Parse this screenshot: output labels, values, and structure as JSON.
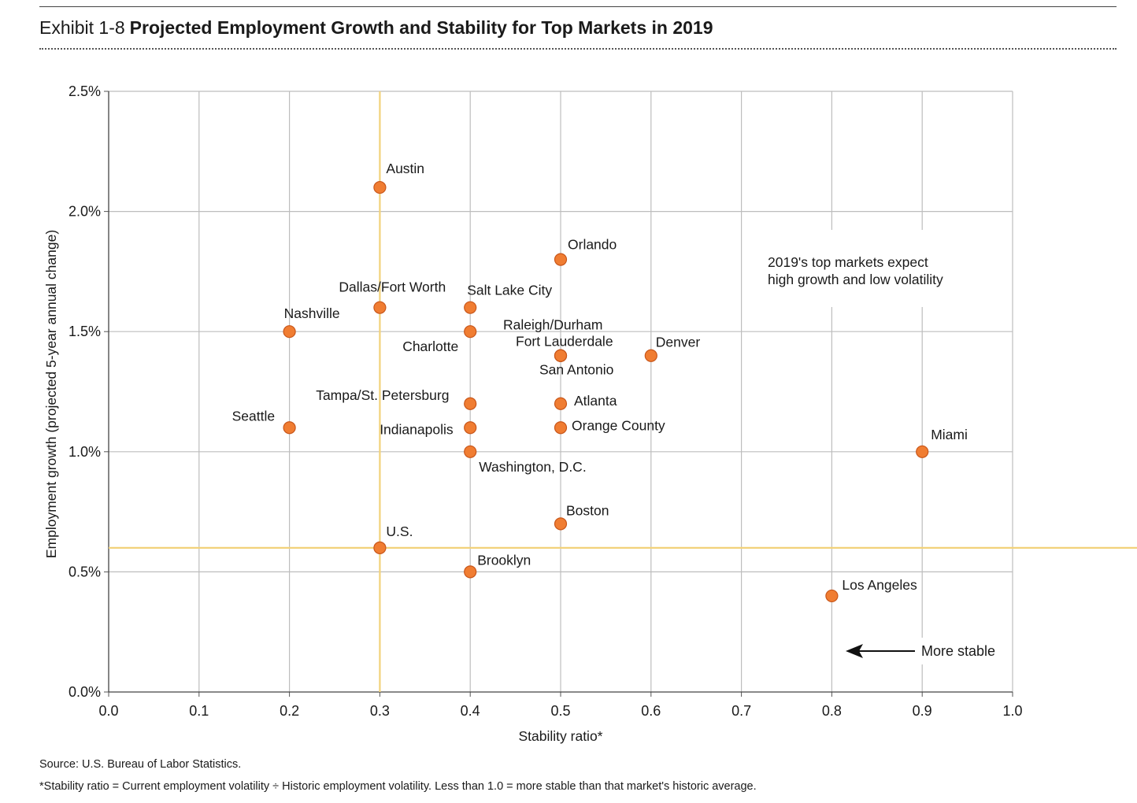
{
  "exhibit": {
    "number": "Exhibit 1-8",
    "title": "Projected Employment Growth and Stability for Top Markets in 2019"
  },
  "chart_data": {
    "type": "scatter",
    "xlabel": "Stability ratio*",
    "ylabel": "Employment growth (projected 5-year annual change)",
    "xlim": [
      0,
      1
    ],
    "ylim": [
      0,
      2.5
    ],
    "x_ticks": [
      "0.0",
      "0.1",
      "0.2",
      "0.3",
      "0.4",
      "0.5",
      "0.6",
      "0.7",
      "0.8",
      "0.9",
      "1.0"
    ],
    "y_ticks": [
      "0.0%",
      "0.5%",
      "1.0%",
      "1.5%",
      "2.0%",
      "2.5%"
    ],
    "grid": true,
    "reference_lines": {
      "x": 0.3,
      "y": 0.6,
      "color": "#f2d27a"
    },
    "marker_color": "#f07d32",
    "points": [
      {
        "label": "Austin",
        "x": 0.3,
        "y": 2.1
      },
      {
        "label": "Orlando",
        "x": 0.5,
        "y": 1.8
      },
      {
        "label": "Dallas/Fort Worth",
        "x": 0.3,
        "y": 1.6
      },
      {
        "label": "Salt Lake City",
        "x": 0.4,
        "y": 1.6
      },
      {
        "label": "Nashville",
        "x": 0.2,
        "y": 1.5
      },
      {
        "label": "Charlotte",
        "x": 0.4,
        "y": 1.5
      },
      {
        "label": "Raleigh/Durham",
        "x": 0.5,
        "y": 1.4
      },
      {
        "label": "Fort Lauderdale",
        "x": 0.5,
        "y": 1.4
      },
      {
        "label": "San Antonio",
        "x": 0.5,
        "y": 1.4
      },
      {
        "label": "Denver",
        "x": 0.6,
        "y": 1.4
      },
      {
        "label": "Tampa/St. Petersburg",
        "x": 0.4,
        "y": 1.2
      },
      {
        "label": "Atlanta",
        "x": 0.5,
        "y": 1.2
      },
      {
        "label": "Seattle",
        "x": 0.2,
        "y": 1.1
      },
      {
        "label": "Indianapolis",
        "x": 0.4,
        "y": 1.1
      },
      {
        "label": "Orange County",
        "x": 0.5,
        "y": 1.1
      },
      {
        "label": "Washington, D.C.",
        "x": 0.4,
        "y": 1.0
      },
      {
        "label": "Miami",
        "x": 0.9,
        "y": 1.0
      },
      {
        "label": "Boston",
        "x": 0.5,
        "y": 0.7
      },
      {
        "label": "U.S.",
        "x": 0.3,
        "y": 0.6
      },
      {
        "label": "Brooklyn",
        "x": 0.4,
        "y": 0.5
      },
      {
        "label": "Los Angeles",
        "x": 0.8,
        "y": 0.4
      }
    ],
    "annotations": [
      "2019's top markets expect",
      "high growth and low volatility"
    ],
    "arrow_label": "More stable"
  },
  "footnotes": {
    "source": "Source: U.S. Bureau of Labor Statistics.",
    "note": "*Stability ratio = Current employment volatility ÷ Historic employment volatility. Less than 1.0 = more stable than that market's historic average."
  }
}
